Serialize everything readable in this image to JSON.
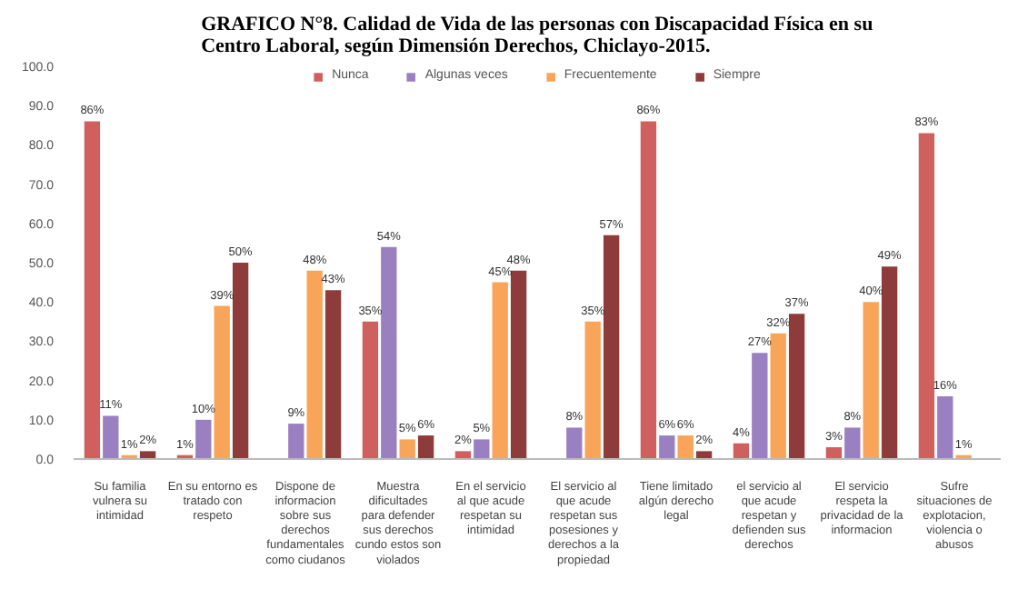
{
  "chart_data": {
    "type": "bar",
    "title": "GRAFICO N°8. Calidad de Vida de las personas con Discapacidad Física en su Centro Laboral, según Dimensión Derechos, Chiclayo-2015.",
    "categories": [
      "Su familia vulnera su intimidad",
      "En su entorno es tratado con respeto",
      "Dispone de informacion sobre sus derechos fundamentales como ciudanos",
      "Muestra dificultades para defender sus derechos cundo estos son violados",
      "En el servicio al que acude respetan su intimidad",
      "El servicio al que acude respetan sus posesiones y derechos a la propiedad",
      "Tiene limitado algún derecho legal",
      "el servicio  al que acude respetan y defienden sus derechos",
      "El servicio respeta la privacidad de la informacion",
      "Sufre situaciones de explotacion, violencia o abusos"
    ],
    "series": [
      {
        "name": "Nunca",
        "color": "#d0605e",
        "values": [
          86,
          1,
          null,
          35,
          2,
          null,
          86,
          4,
          3,
          83
        ],
        "value_labels": [
          "86%",
          "1%",
          null,
          "35%",
          "2%",
          null,
          "86%",
          "4%",
          "3%",
          "83%"
        ]
      },
      {
        "name": "Algunas veces",
        "color": "#9a80c0",
        "values": [
          11,
          10,
          9,
          54,
          5,
          8,
          6,
          27,
          8,
          16
        ],
        "value_labels": [
          "11%",
          "10%",
          "9%",
          "54%",
          "5%",
          "8%",
          "6%",
          "27%",
          "8%",
          "16%"
        ]
      },
      {
        "name": "Frecuentemente",
        "color": "#f8a55a",
        "values": [
          1,
          39,
          48,
          5,
          45,
          35,
          6,
          32,
          40,
          1
        ],
        "value_labels": [
          "1%",
          "39%",
          "48%",
          "5%",
          "45%",
          "35%",
          "6%",
          "32%",
          "40%",
          "1%"
        ]
      },
      {
        "name": "Siempre",
        "color": "#8e3b3b",
        "values": [
          2,
          50,
          43,
          6,
          48,
          57,
          2,
          37,
          49,
          null
        ],
        "value_labels": [
          "2%",
          "50%",
          "43%",
          "6%",
          "48%",
          "57%",
          "2%",
          "37%",
          "49%",
          null
        ]
      }
    ],
    "ylim": [
      0,
      100
    ],
    "yticks": [
      {
        "value": 0,
        "label": "0.0"
      },
      {
        "value": 10,
        "label": "10.0"
      },
      {
        "value": 20,
        "label": "20.0"
      },
      {
        "value": 30,
        "label": "30.0"
      },
      {
        "value": 40,
        "label": "40.0"
      },
      {
        "value": 50,
        "label": "50.0"
      },
      {
        "value": 60,
        "label": "60.0"
      },
      {
        "value": 70,
        "label": "70.0"
      },
      {
        "value": 80,
        "label": "80.0"
      },
      {
        "value": 90,
        "label": "90.0"
      },
      {
        "value": 100,
        "label": "100.0"
      }
    ],
    "grid": false,
    "legend": "top"
  }
}
